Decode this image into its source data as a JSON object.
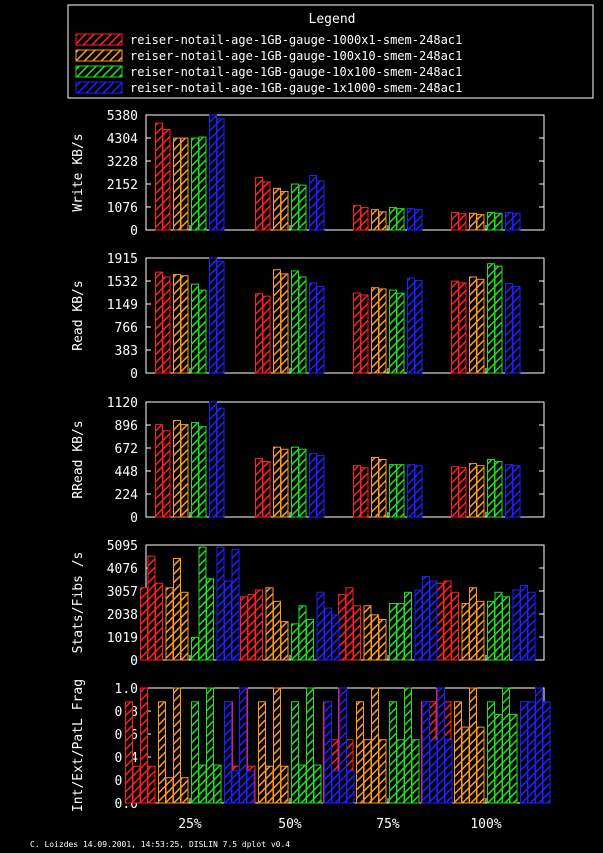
{
  "legend": {
    "title": "Legend",
    "entries": [
      "reiser-notail-age-1GB-gauge-1000x1-smem-248ac1",
      "reiser-notail-age-1GB-gauge-100x10-smem-248ac1",
      "reiser-notail-age-1GB-gauge-10x100-smem-248ac1",
      "reiser-notail-age-1GB-gauge-1x1000-smem-248ac1"
    ]
  },
  "colors": {
    "series": [
      "#ff2020",
      "#ff9a20",
      "#20e020",
      "#2020ff"
    ],
    "axis": "#ffffff",
    "background": "#000000"
  },
  "footer": "C. Loizdes 14.09.2001, 14:53:25, DISLIN 7.5 dplot v0.4",
  "chart_data": [
    {
      "type": "bar",
      "ylabel": "Write KB/s",
      "categories": [
        "25%",
        "50%",
        "75%",
        "100%"
      ],
      "yticks": [
        "0",
        "1076",
        "2152",
        "3228",
        "4304",
        "5380"
      ],
      "ylim": [
        0,
        5380
      ],
      "grid": false,
      "series": [
        {
          "name": "reiser-notail-age-1GB-gauge-1000x1-smem-248ac1",
          "values": [
            [
              5000,
              4700
            ],
            [
              2450,
              2250
            ],
            [
              1150,
              1050
            ],
            [
              820,
              760
            ]
          ]
        },
        {
          "name": "reiser-notail-age-1GB-gauge-100x10-smem-248ac1",
          "values": [
            [
              4300,
              4300
            ],
            [
              1950,
              1800
            ],
            [
              950,
              850
            ],
            [
              780,
              720
            ]
          ]
        },
        {
          "name": "reiser-notail-age-1GB-gauge-10x100-smem-248ac1",
          "values": [
            [
              4300,
              4350
            ],
            [
              2150,
              2100
            ],
            [
              1050,
              1000
            ],
            [
              820,
              780
            ]
          ]
        },
        {
          "name": "reiser-notail-age-1GB-gauge-1x1000-smem-248ac1",
          "values": [
            [
              5380,
              5200
            ],
            [
              2550,
              2300
            ],
            [
              1000,
              950
            ],
            [
              820,
              780
            ]
          ]
        }
      ]
    },
    {
      "type": "bar",
      "ylabel": "Read KB/s",
      "categories": [
        "25%",
        "50%",
        "75%",
        "100%"
      ],
      "yticks": [
        "0",
        "383",
        "766",
        "1149",
        "1532",
        "1915"
      ],
      "ylim": [
        0,
        1915
      ],
      "grid": false,
      "series": [
        {
          "name": "reiser-notail-age-1GB-gauge-1000x1-smem-248ac1",
          "values": [
            [
              1680,
              1600
            ],
            [
              1320,
              1280
            ],
            [
              1330,
              1300
            ],
            [
              1530,
              1500
            ]
          ]
        },
        {
          "name": "reiser-notail-age-1GB-gauge-100x10-smem-248ac1",
          "values": [
            [
              1640,
              1620
            ],
            [
              1720,
              1650
            ],
            [
              1420,
              1400
            ],
            [
              1600,
              1560
            ]
          ]
        },
        {
          "name": "reiser-notail-age-1GB-gauge-10x100-smem-248ac1",
          "values": [
            [
              1480,
              1380
            ],
            [
              1700,
              1600
            ],
            [
              1380,
              1330
            ],
            [
              1820,
              1780
            ]
          ]
        },
        {
          "name": "reiser-notail-age-1GB-gauge-1x1000-smem-248ac1",
          "values": [
            [
              1915,
              1860
            ],
            [
              1500,
              1440
            ],
            [
              1580,
              1540
            ],
            [
              1490,
              1440
            ]
          ]
        }
      ]
    },
    {
      "type": "bar",
      "ylabel": "RRead KB/s",
      "categories": [
        "25%",
        "50%",
        "75%",
        "100%"
      ],
      "yticks": [
        "0",
        "224",
        "448",
        "672",
        "896",
        "1120"
      ],
      "ylim": [
        0,
        1120
      ],
      "grid": false,
      "series": [
        {
          "name": "reiser-notail-age-1GB-gauge-1000x1-smem-248ac1",
          "values": [
            [
              900,
              840
            ],
            [
              570,
              540
            ],
            [
              500,
              480
            ],
            [
              490,
              480
            ]
          ]
        },
        {
          "name": "reiser-notail-age-1GB-gauge-100x10-smem-248ac1",
          "values": [
            [
              940,
              900
            ],
            [
              680,
              660
            ],
            [
              580,
              560
            ],
            [
              520,
              500
            ]
          ]
        },
        {
          "name": "reiser-notail-age-1GB-gauge-10x100-smem-248ac1",
          "values": [
            [
              920,
              880
            ],
            [
              680,
              660
            ],
            [
              510,
              510
            ],
            [
              560,
              540
            ]
          ]
        },
        {
          "name": "reiser-notail-age-1GB-gauge-1x1000-smem-248ac1",
          "values": [
            [
              1120,
              1060
            ],
            [
              620,
              600
            ],
            [
              510,
              500
            ],
            [
              510,
              500
            ]
          ]
        }
      ]
    },
    {
      "type": "bar",
      "ylabel": "Stats/Fibs /s",
      "categories": [
        "25%",
        "50%",
        "75%",
        "100%"
      ],
      "yticks": [
        "0",
        "1019",
        "2038",
        "3057",
        "4076",
        "5095"
      ],
      "ylim": [
        0,
        5095
      ],
      "grid": false,
      "series": [
        {
          "name": "reiser-notail-age-1GB-gauge-1000x1-smem-248ac1",
          "values": [
            [
              3200,
              4600,
              3400
            ],
            [
              2800,
              2900,
              3100
            ],
            [
              2900,
              3200,
              2400
            ],
            [
              3400,
              3500,
              3000
            ]
          ]
        },
        {
          "name": "reiser-notail-age-1GB-gauge-100x10-smem-248ac1",
          "values": [
            [
              3200,
              4500,
              3000
            ],
            [
              3200,
              2600,
              1700
            ],
            [
              2400,
              2000,
              1800
            ],
            [
              2500,
              3200,
              2600
            ]
          ]
        },
        {
          "name": "reiser-notail-age-1GB-gauge-10x100-smem-248ac1",
          "values": [
            [
              1000,
              5000,
              3600
            ],
            [
              1600,
              2400,
              1800
            ],
            [
              2500,
              2500,
              3000
            ],
            [
              2600,
              3000,
              2800
            ]
          ]
        },
        {
          "name": "reiser-notail-age-1GB-gauge-1x1000-smem-248ac1",
          "values": [
            [
              5000,
              3500,
              4900
            ],
            [
              3000,
              2300,
              2000
            ],
            [
              3100,
              3700,
              3500
            ],
            [
              3100,
              3300,
              3000
            ]
          ]
        }
      ]
    },
    {
      "type": "bar",
      "ylabel": "Int/Ext/PatL Frag",
      "categories": [
        "25%",
        "50%",
        "75%",
        "100%"
      ],
      "yticks": [
        "0.0",
        "0.2",
        "0.4",
        "0.6",
        "0.8",
        "1.0"
      ],
      "ylim": [
        0,
        1.0
      ],
      "grid": false,
      "series": [
        {
          "name": "reiser-notail-age-1GB-gauge-1000x1-smem-248ac1",
          "values": [
            [
              0.88,
              0.32,
              1.0,
              0.32
            ],
            [
              0.88,
              0.32,
              1.0,
              0.32
            ],
            [
              0.88,
              0.55,
              1.0,
              0.55
            ],
            [
              0.88,
              0.88,
              1.0,
              0.88
            ]
          ]
        },
        {
          "name": "reiser-notail-age-1GB-gauge-100x10-smem-248ac1",
          "values": [
            [
              0.88,
              0.22,
              1.0,
              0.22
            ],
            [
              0.88,
              0.32,
              1.0,
              0.32
            ],
            [
              0.88,
              0.55,
              1.0,
              0.55
            ],
            [
              0.88,
              0.66,
              1.0,
              0.66
            ]
          ]
        },
        {
          "name": "reiser-notail-age-1GB-gauge-10x100-smem-248ac1",
          "values": [
            [
              0.88,
              0.33,
              1.0,
              0.33
            ],
            [
              0.88,
              0.33,
              1.0,
              0.33
            ],
            [
              0.88,
              0.55,
              1.0,
              0.55
            ],
            [
              0.88,
              0.77,
              1.0,
              0.77
            ]
          ]
        },
        {
          "name": "reiser-notail-age-1GB-gauge-1x1000-smem-248ac1",
          "values": [
            [
              0.88,
              0.28,
              1.0,
              0.28
            ],
            [
              0.88,
              0.28,
              1.0,
              0.28
            ],
            [
              0.88,
              0.55,
              1.0,
              0.55
            ],
            [
              0.88,
              0.88,
              1.0,
              0.88
            ]
          ]
        }
      ]
    }
  ]
}
